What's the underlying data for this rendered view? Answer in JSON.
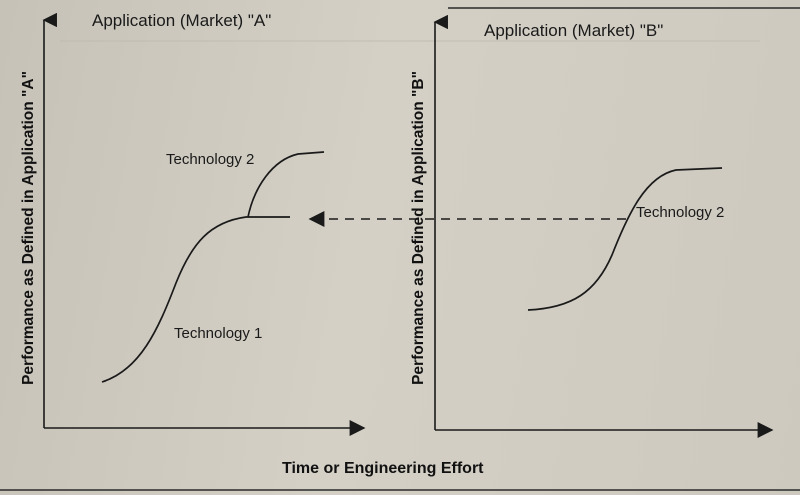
{
  "panel_a": {
    "title": "Application (Market) \"A\"",
    "y_axis_label": "Performance as Defined in Application \"A\"",
    "curve_labels": [
      "Technology 2",
      "Technology 1"
    ]
  },
  "panel_b": {
    "title": "Application (Market) \"B\"",
    "y_axis_label": "Performance as Defined in Application \"B\"",
    "curve_labels": [
      "Technology 2"
    ]
  },
  "x_axis_label": "Time or Engineering Effort",
  "colors": {
    "ink": "#1a1a1a",
    "paper": "#cfcbc1"
  }
}
